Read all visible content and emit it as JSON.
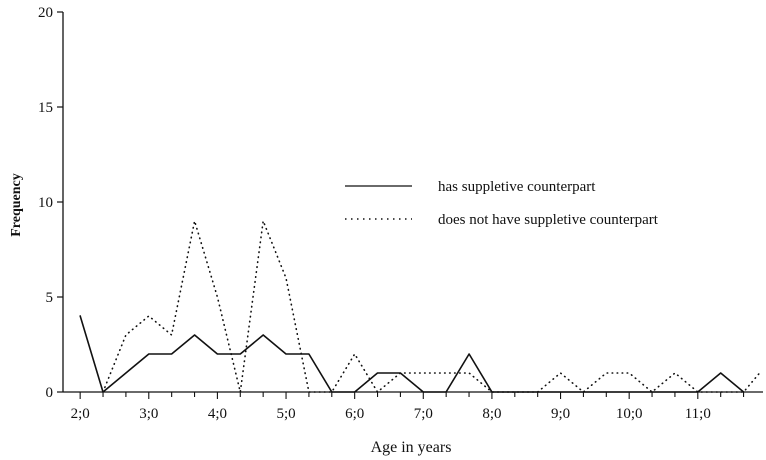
{
  "chart_data": {
    "type": "line",
    "title": "",
    "xlabel": "Age in years",
    "ylabel": "Frequency",
    "xlim": [
      1.75,
      11.95
    ],
    "ylim": [
      0,
      20
    ],
    "x_ticks": [
      2,
      3,
      4,
      5,
      6,
      7,
      8,
      9,
      10,
      11
    ],
    "x_tick_labels": [
      "2;0",
      "3;0",
      "4;0",
      "5;0",
      "6;0",
      "7;0",
      "8;0",
      "9;0",
      "10;0",
      "11;0"
    ],
    "y_ticks": [
      0,
      5,
      10,
      15,
      20
    ],
    "y_tick_labels": [
      "0",
      "5",
      "10",
      "15",
      "20"
    ],
    "grid": false,
    "legend_position": "right",
    "series": [
      {
        "name": "has suppletive counterpart",
        "style": "solid",
        "color": "#111111",
        "x": [
          2.0,
          2.333,
          2.667,
          3.0,
          3.333,
          3.667,
          4.0,
          4.333,
          4.667,
          5.0,
          5.333,
          5.667,
          6.0,
          6.333,
          6.667,
          7.0,
          7.333,
          7.667,
          8.0,
          8.333,
          8.667,
          9.0,
          9.333,
          9.667,
          10.0,
          10.333,
          10.667,
          11.0,
          11.333,
          11.667
        ],
        "values": [
          4,
          0,
          1,
          2,
          2,
          3,
          2,
          2,
          3,
          2,
          2,
          0,
          0,
          1,
          1,
          0,
          0,
          2,
          0,
          0,
          0,
          0,
          0,
          0,
          0,
          0,
          0,
          0,
          1,
          0
        ]
      },
      {
        "name": "does not have suppletive counterpart",
        "style": "dotted",
        "color": "#111111",
        "x": [
          2.333,
          2.667,
          3.0,
          3.333,
          3.667,
          4.0,
          4.333,
          4.667,
          5.0,
          5.333,
          5.667,
          6.0,
          6.333,
          6.667,
          7.0,
          7.333,
          7.667,
          8.0,
          8.333,
          8.667,
          9.0,
          9.333,
          9.667,
          10.0,
          10.333,
          10.667,
          11.0,
          11.333,
          11.667,
          11.9
        ],
        "values": [
          0,
          3,
          4,
          3,
          9,
          5,
          0,
          9,
          6,
          0,
          0,
          2,
          0,
          1,
          1,
          1,
          1,
          0,
          0,
          0,
          1,
          0,
          1,
          1,
          0,
          1,
          0,
          0,
          0,
          1
        ]
      }
    ]
  }
}
